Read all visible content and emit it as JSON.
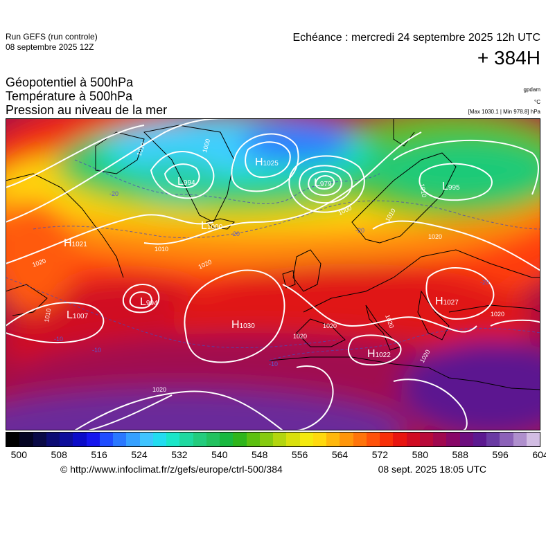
{
  "header": {
    "run_title": "Run GEFS (run controle)",
    "run_date": "08 septembre 2025 12Z",
    "valid_time": "Echéance : mercredi 24 septembre 2025 12h UTC",
    "lead_time": "+ 384H"
  },
  "parameters": [
    "Géopotentiel à 500hPa",
    "Température à 500hPa",
    "Pression au niveau de la mer"
  ],
  "units": {
    "geopotential": "gpdam",
    "temperature": "°C",
    "minmax": "[Max 1030.1 | Min 978.8] hPa"
  },
  "pressure_centers": [
    {
      "type": "H",
      "value": "1025"
    },
    {
      "type": "L",
      "value": "979"
    },
    {
      "type": "L",
      "value": "995"
    },
    {
      "type": "L",
      "value": "994"
    },
    {
      "type": "L",
      "value": "1000"
    },
    {
      "type": "H",
      "value": "1021"
    },
    {
      "type": "L",
      "value": "1007"
    },
    {
      "type": "L",
      "value": "994"
    },
    {
      "type": "H",
      "value": "1030"
    },
    {
      "type": "H",
      "value": "1027"
    },
    {
      "type": "H",
      "value": "1022"
    }
  ],
  "isobar_labels": [
    "1010",
    "1000",
    "1010",
    "1000",
    "1010",
    "1020",
    "1020",
    "1010",
    "1020",
    "1020",
    "1020",
    "1020",
    "1020",
    "1020",
    "1020",
    "1010"
  ],
  "temperature_labels": [
    "-20",
    "-20",
    "-20",
    "-10",
    "-10",
    "-10",
    "-20"
  ],
  "colorbar": {
    "tick_labels": [
      "500",
      "508",
      "516",
      "524",
      "532",
      "540",
      "548",
      "556",
      "564",
      "572",
      "580",
      "588",
      "596",
      "604"
    ],
    "colors": [
      "#000000",
      "#050523",
      "#0a0a46",
      "#0c0c73",
      "#0d0d9a",
      "#0b0bc8",
      "#1515ee",
      "#1f4dff",
      "#2a78ff",
      "#35a0ff",
      "#3fc4ff",
      "#22dcf0",
      "#19e6c8",
      "#1fd9a0",
      "#23cc7d",
      "#22c25f",
      "#19b83f",
      "#2fb51b",
      "#5cc010",
      "#86cb10",
      "#b3d60e",
      "#d9e00c",
      "#f4ea0d",
      "#ffd90d",
      "#ffb80c",
      "#ff960b",
      "#ff740a",
      "#ff5209",
      "#f83008",
      "#e81510",
      "#d00c22",
      "#b80a3a",
      "#a0084f",
      "#880767",
      "#6e0e7f",
      "#5c1990",
      "#6a3aa3",
      "#8c62b8",
      "#af8fcd",
      "#d2bde3"
    ]
  },
  "footer": {
    "copyright": "© http://www.infoclimat.fr/z/gefs/europe/ctrl-500/384",
    "generated": "08 sept. 2025 18:05 UTC"
  }
}
